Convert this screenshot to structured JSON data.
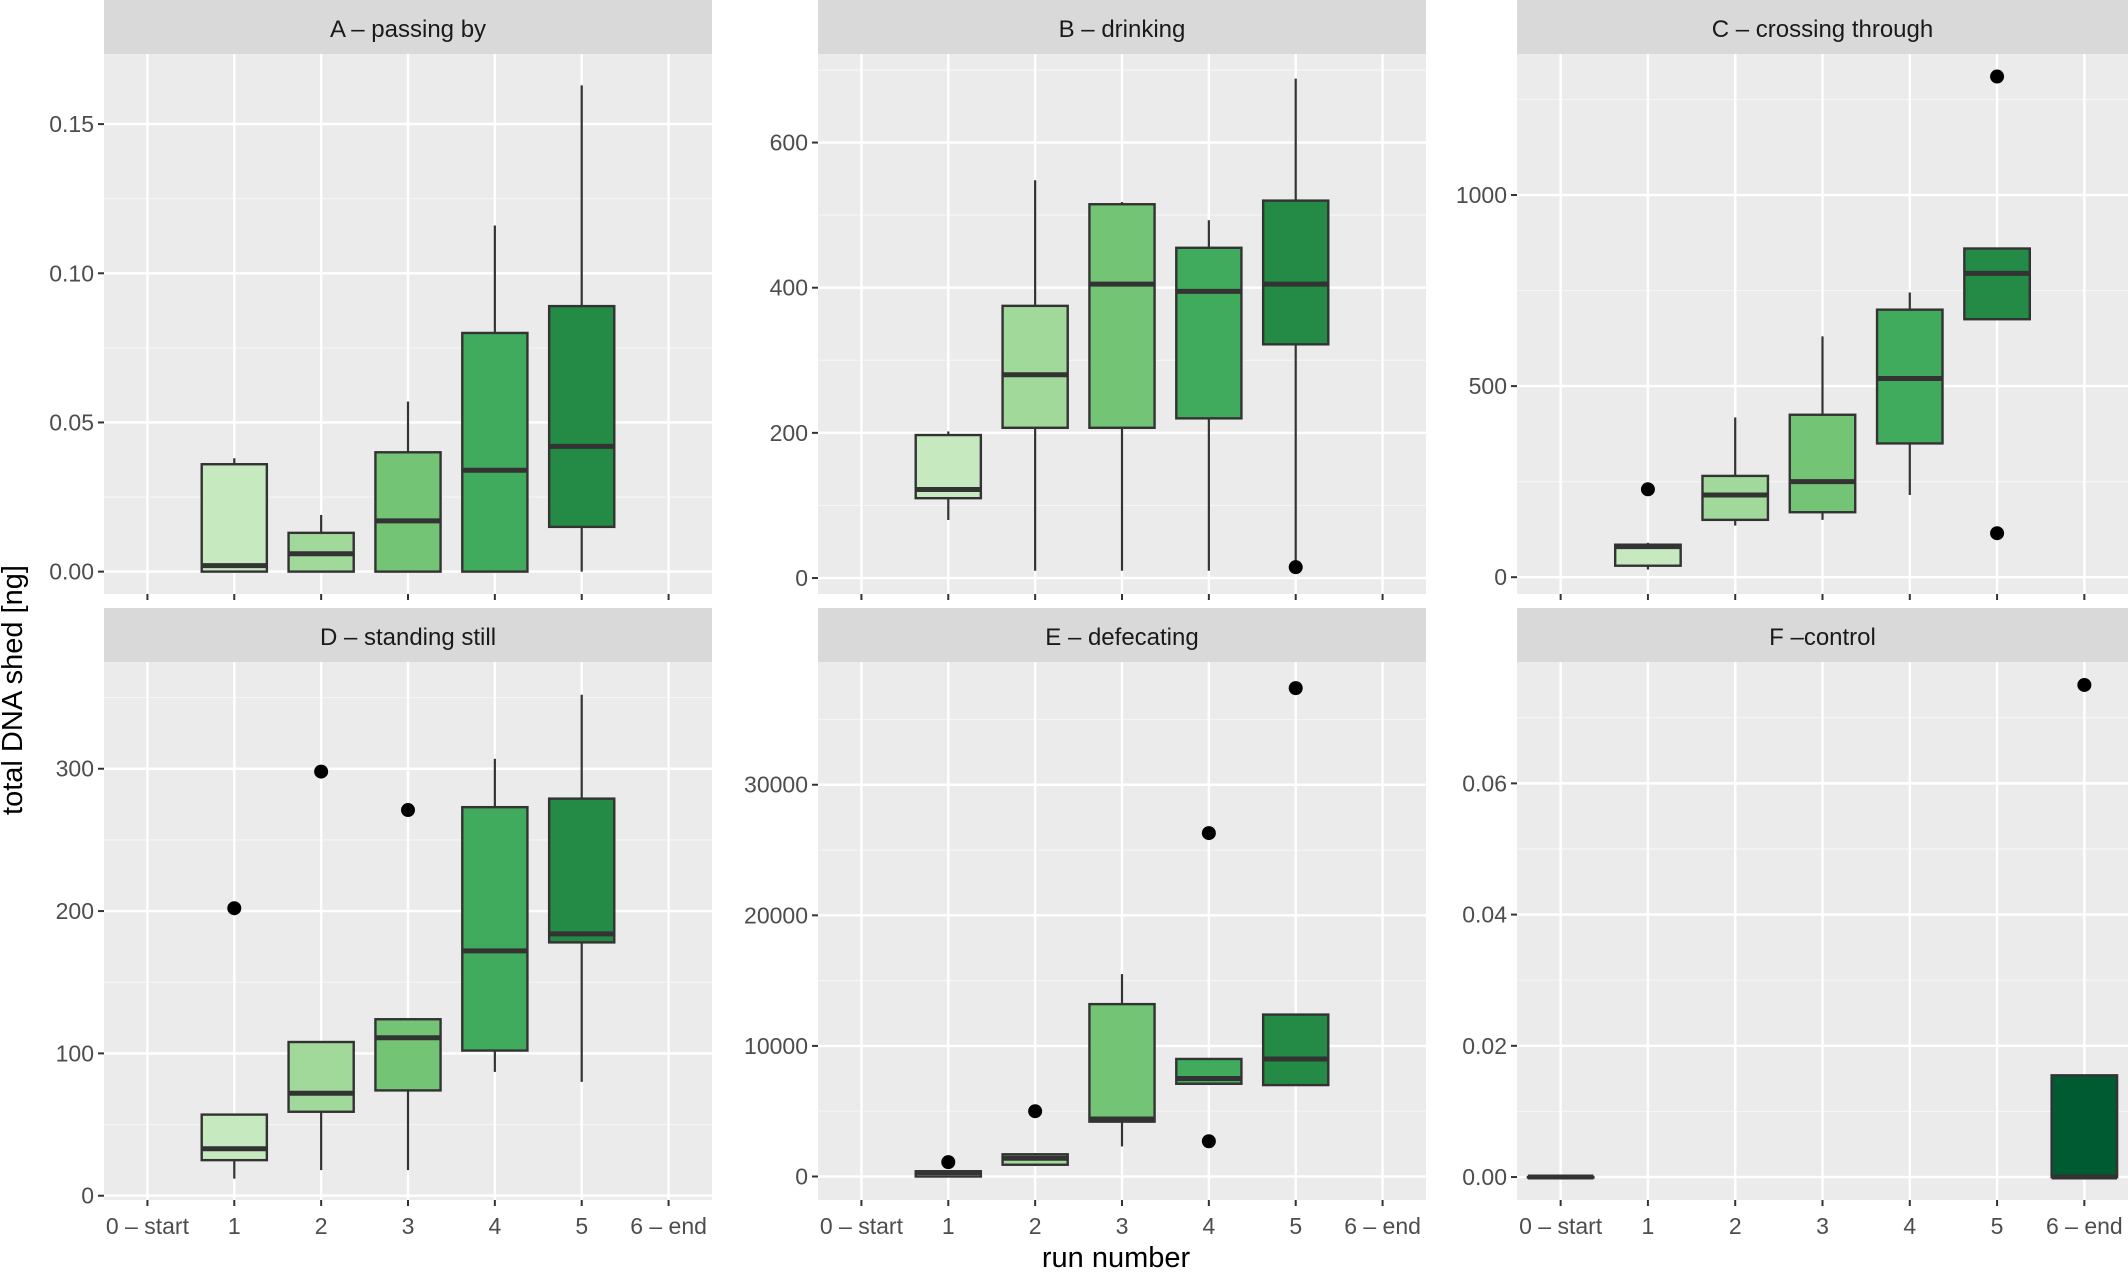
{
  "figure": {
    "ylabel": "total DNA shed [ng]",
    "xlabel": "run number",
    "categories": [
      "0 – start",
      "1",
      "2",
      "3",
      "4",
      "5",
      "6 – end"
    ]
  },
  "colors": {
    "panel_bg": "#ebebeb",
    "strip_bg": "#d9d9d9",
    "grid_major": "#ffffff",
    "grid_minor": "#f5f5f5",
    "box_stroke": "#333333",
    "text": "#4d4d4d",
    "run_fills": [
      "#ffffff",
      "#c7e9c0",
      "#a1d99b",
      "#74c476",
      "#41ab5d",
      "#238b45",
      "#005a32"
    ]
  },
  "chart_data": [
    {
      "type": "box",
      "title": "A – passing by",
      "ylim": [
        -0.0075,
        0.1735
      ],
      "yticks": [
        0,
        0.05,
        0.1,
        0.15
      ],
      "yticklabels": [
        "0.00",
        "0.05",
        "0.10",
        "0.15"
      ],
      "boxes": [
        {
          "x": 1,
          "lower": 0,
          "q1": 0,
          "median": 0.002,
          "q3": 0.036,
          "upper": 0.038
        },
        {
          "x": 2,
          "lower": 0,
          "q1": 0,
          "median": 0.006,
          "q3": 0.013,
          "upper": 0.019
        },
        {
          "x": 3,
          "lower": 0,
          "q1": 0,
          "median": 0.017,
          "q3": 0.04,
          "upper": 0.057
        },
        {
          "x": 4,
          "lower": 0,
          "q1": 0,
          "median": 0.034,
          "q3": 0.08,
          "upper": 0.116
        },
        {
          "x": 5,
          "lower": 0,
          "q1": 0.015,
          "median": 0.042,
          "q3": 0.089,
          "upper": 0.163
        }
      ],
      "outliers": []
    },
    {
      "type": "box",
      "title": "B – drinking",
      "ylim": [
        -22,
        722
      ],
      "yticks": [
        0,
        200,
        400,
        600
      ],
      "yticklabels": [
        "0",
        "200",
        "400",
        "600"
      ],
      "boxes": [
        {
          "x": 1,
          "lower": 80,
          "q1": 110,
          "median": 122,
          "q3": 197,
          "upper": 202
        },
        {
          "x": 2,
          "lower": 10,
          "q1": 207,
          "median": 280,
          "q3": 375,
          "upper": 548
        },
        {
          "x": 3,
          "lower": 10,
          "q1": 207,
          "median": 405,
          "q3": 515,
          "upper": 518
        },
        {
          "x": 4,
          "lower": 10,
          "q1": 220,
          "median": 395,
          "q3": 455,
          "upper": 493
        },
        {
          "x": 5,
          "lower": 15,
          "q1": 322,
          "median": 405,
          "q3": 520,
          "upper": 688
        }
      ],
      "outliers": [
        {
          "x": 5,
          "y": 15
        }
      ]
    },
    {
      "type": "box",
      "title": "C – crossing through",
      "ylim": [
        -44,
        1369
      ],
      "yticks": [
        0,
        500,
        1000
      ],
      "yticklabels": [
        "0",
        "500",
        "1000"
      ],
      "boxes": [
        {
          "x": 1,
          "lower": 20,
          "q1": 30,
          "median": 80,
          "q3": 85,
          "upper": 90
        },
        {
          "x": 2,
          "lower": 135,
          "q1": 150,
          "median": 215,
          "q3": 265,
          "upper": 418
        },
        {
          "x": 3,
          "lower": 150,
          "q1": 170,
          "median": 250,
          "q3": 425,
          "upper": 630
        },
        {
          "x": 4,
          "lower": 215,
          "q1": 350,
          "median": 520,
          "q3": 700,
          "upper": 745
        },
        {
          "x": 5,
          "lower": 680,
          "q1": 675,
          "median": 795,
          "q3": 860,
          "upper": 860
        }
      ],
      "outliers": [
        {
          "x": 1,
          "y": 230
        },
        {
          "x": 5,
          "y": 1310
        },
        {
          "x": 5,
          "y": 115
        }
      ]
    },
    {
      "type": "box",
      "title": "D – standing still",
      "ylim": [
        -3,
        375
      ],
      "yticks": [
        0,
        100,
        200,
        300
      ],
      "yticklabels": [
        "0",
        "100",
        "200",
        "300"
      ],
      "boxes": [
        {
          "x": 1,
          "lower": 12,
          "q1": 25,
          "median": 33,
          "q3": 57,
          "upper": 57
        },
        {
          "x": 2,
          "lower": 18,
          "q1": 59,
          "median": 72,
          "q3": 108,
          "upper": 108
        },
        {
          "x": 3,
          "lower": 18,
          "q1": 74,
          "median": 111,
          "q3": 124,
          "upper": 124
        },
        {
          "x": 4,
          "lower": 87,
          "q1": 102,
          "median": 172,
          "q3": 273,
          "upper": 307
        },
        {
          "x": 5,
          "lower": 80,
          "q1": 178,
          "median": 184,
          "q3": 279,
          "upper": 352
        }
      ],
      "outliers": [
        {
          "x": 1,
          "y": 202
        },
        {
          "x": 2,
          "y": 298
        },
        {
          "x": 3,
          "y": 271
        }
      ]
    },
    {
      "type": "box",
      "title": "E – defecating",
      "ylim": [
        -1800,
        39400
      ],
      "yticks": [
        0,
        10000,
        20000,
        30000
      ],
      "yticklabels": [
        "0",
        "10000",
        "20000",
        "30000"
      ],
      "boxes": [
        {
          "x": 1,
          "lower": 0,
          "q1": 0,
          "median": 300,
          "q3": 400,
          "upper": 500
        },
        {
          "x": 2,
          "lower": 800,
          "q1": 900,
          "median": 1400,
          "q3": 1700,
          "upper": 1800
        },
        {
          "x": 3,
          "lower": 2300,
          "q1": 4200,
          "median": 4400,
          "q3": 13200,
          "upper": 15500
        },
        {
          "x": 4,
          "lower": 7000,
          "q1": 7100,
          "median": 7500,
          "q3": 9000,
          "upper": 9000
        },
        {
          "x": 5,
          "lower": 7000,
          "q1": 7000,
          "median": 9000,
          "q3": 12400,
          "upper": 12400
        }
      ],
      "outliers": [
        {
          "x": 1,
          "y": 1100
        },
        {
          "x": 2,
          "y": 5000
        },
        {
          "x": 4,
          "y": 2700
        },
        {
          "x": 4,
          "y": 26300
        },
        {
          "x": 5,
          "y": 37400
        }
      ]
    },
    {
      "type": "box",
      "title": "F –control",
      "ylim": [
        -0.0035,
        0.0785
      ],
      "yticks": [
        0,
        0.02,
        0.04,
        0.06
      ],
      "yticklabels": [
        "0.00",
        "0.02",
        "0.04",
        "0.06"
      ],
      "boxes": [
        {
          "x": 0,
          "lower": 0,
          "q1": 0,
          "median": 0,
          "q3": 0,
          "upper": 0
        },
        {
          "x": 6,
          "lower": 0,
          "q1": 0,
          "median": 0,
          "q3": 0.0155,
          "upper": 0.0155
        }
      ],
      "outliers": [
        {
          "x": 6,
          "y": 0.075
        }
      ]
    }
  ]
}
